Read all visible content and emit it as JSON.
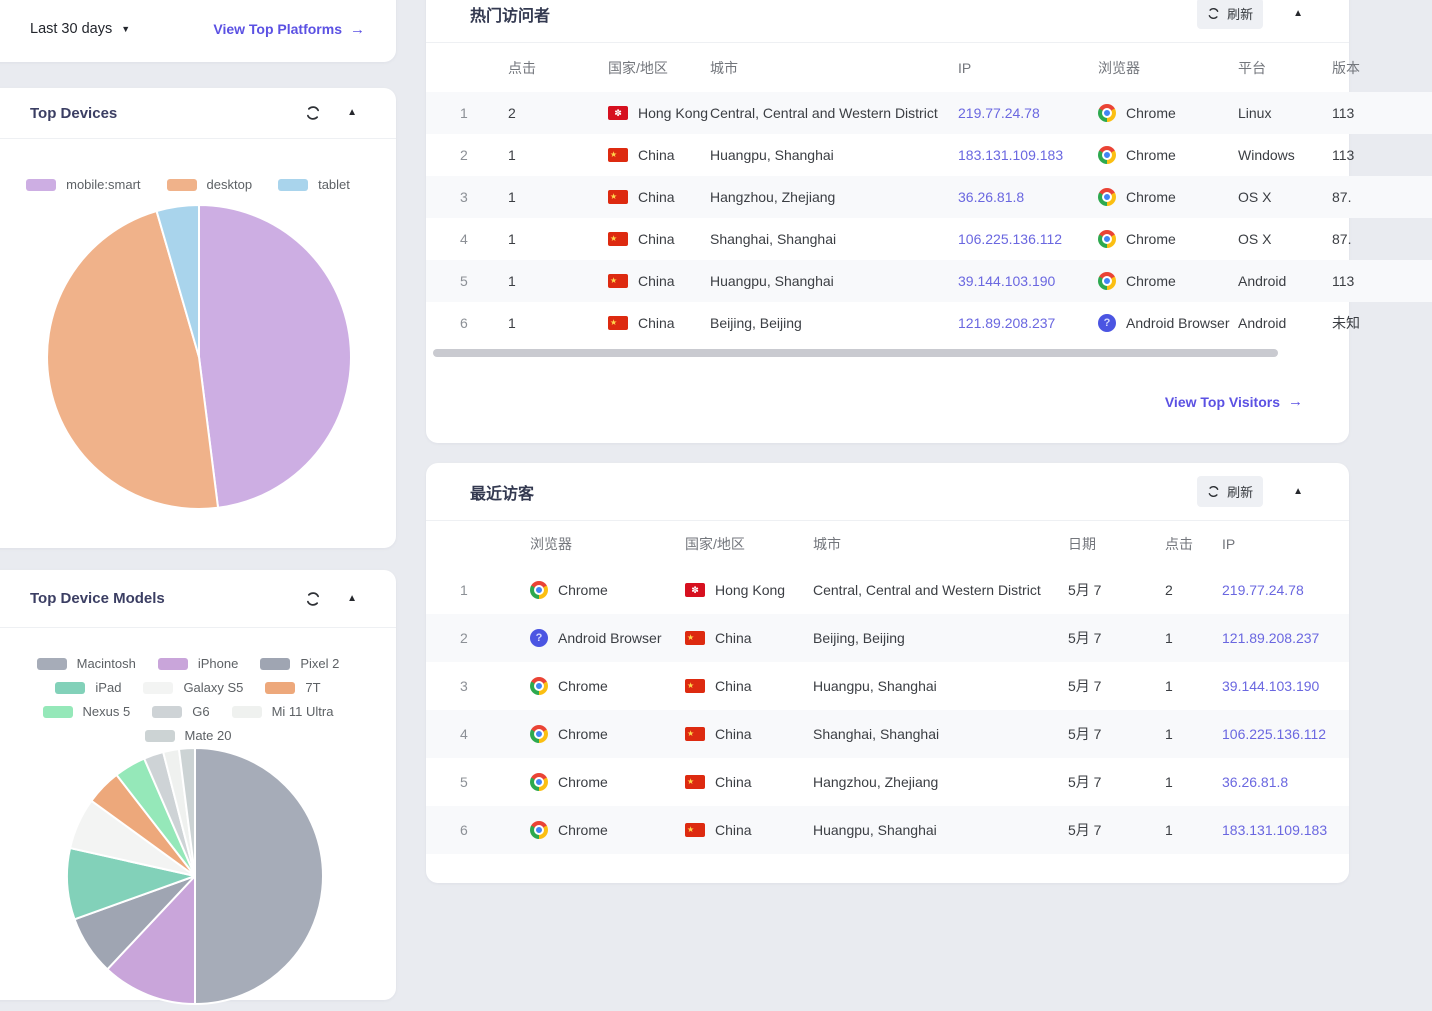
{
  "filter_bar": {
    "date_range": "Last 30 days",
    "platforms_link": "View Top Platforms",
    "arrow": "→"
  },
  "top_devices": {
    "title": "Top Devices"
  },
  "top_device_models": {
    "title": "Top Device Models"
  },
  "top_visitors": {
    "title": "热门访问者",
    "refresh": "刷新",
    "view_link": "View Top Visitors",
    "arrow": "→",
    "columns": {
      "clicks": "点击",
      "country": "国家/地区",
      "city": "城市",
      "ip": "IP",
      "browser": "浏览器",
      "platform": "平台",
      "version": "版本"
    },
    "rows": [
      {
        "rank": "1",
        "clicks": "2",
        "country": "Hong Kong",
        "flag": "hk",
        "city": "Central, Central and Western District",
        "ip": "219.77.24.78",
        "browser": "Chrome",
        "browser_icon": "chrome",
        "platform": "Linux",
        "version": "113"
      },
      {
        "rank": "2",
        "clicks": "1",
        "country": "China",
        "flag": "cn",
        "city": "Huangpu, Shanghai",
        "ip": "183.131.109.183",
        "browser": "Chrome",
        "browser_icon": "chrome",
        "platform": "Windows",
        "version": "113"
      },
      {
        "rank": "3",
        "clicks": "1",
        "country": "China",
        "flag": "cn",
        "city": "Hangzhou, Zhejiang",
        "ip": "36.26.81.8",
        "browser": "Chrome",
        "browser_icon": "chrome",
        "platform": "OS X",
        "version": "87."
      },
      {
        "rank": "4",
        "clicks": "1",
        "country": "China",
        "flag": "cn",
        "city": "Shanghai, Shanghai",
        "ip": "106.225.136.112",
        "browser": "Chrome",
        "browser_icon": "chrome",
        "platform": "OS X",
        "version": "87."
      },
      {
        "rank": "5",
        "clicks": "1",
        "country": "China",
        "flag": "cn",
        "city": "Huangpu, Shanghai",
        "ip": "39.144.103.190",
        "browser": "Chrome",
        "browser_icon": "chrome",
        "platform": "Android",
        "version": "113"
      },
      {
        "rank": "6",
        "clicks": "1",
        "country": "China",
        "flag": "cn",
        "city": "Beijing, Beijing",
        "ip": "121.89.208.237",
        "browser": "Android Browser",
        "browser_icon": "android-browser",
        "platform": "Android",
        "version": "未知"
      }
    ]
  },
  "recent_visitors": {
    "title": "最近访客",
    "refresh": "刷新",
    "columns": {
      "browser": "浏览器",
      "country": "国家/地区",
      "city": "城市",
      "date": "日期",
      "clicks": "点击",
      "ip": "IP"
    },
    "rows": [
      {
        "rank": "1",
        "browser": "Chrome",
        "browser_icon": "chrome",
        "country": "Hong Kong",
        "flag": "hk",
        "city": "Central, Central and Western District",
        "date": "5月 7",
        "clicks": "2",
        "ip": "219.77.24.78"
      },
      {
        "rank": "2",
        "browser": "Android Browser",
        "browser_icon": "android-browser",
        "country": "China",
        "flag": "cn",
        "city": "Beijing, Beijing",
        "date": "5月 7",
        "clicks": "1",
        "ip": "121.89.208.237"
      },
      {
        "rank": "3",
        "browser": "Chrome",
        "browser_icon": "chrome",
        "country": "China",
        "flag": "cn",
        "city": "Huangpu, Shanghai",
        "date": "5月 7",
        "clicks": "1",
        "ip": "39.144.103.190"
      },
      {
        "rank": "4",
        "browser": "Chrome",
        "browser_icon": "chrome",
        "country": "China",
        "flag": "cn",
        "city": "Shanghai, Shanghai",
        "date": "5月 7",
        "clicks": "1",
        "ip": "106.225.136.112"
      },
      {
        "rank": "5",
        "browser": "Chrome",
        "browser_icon": "chrome",
        "country": "China",
        "flag": "cn",
        "city": "Hangzhou, Zhejiang",
        "date": "5月 7",
        "clicks": "1",
        "ip": "36.26.81.8"
      },
      {
        "rank": "6",
        "browser": "Chrome",
        "browser_icon": "chrome",
        "country": "China",
        "flag": "cn",
        "city": "Huangpu, Shanghai",
        "date": "5月 7",
        "clicks": "1",
        "ip": "183.131.109.183"
      }
    ]
  },
  "chart_data": [
    {
      "type": "pie",
      "title": "Top Devices",
      "labels": [
        "mobile:smart",
        "desktop",
        "tablet"
      ],
      "values": [
        48,
        47.5,
        4.5
      ],
      "unit": "percent",
      "colors": [
        "#cdaee3",
        "#f0b28a",
        "#a9d4ec"
      ],
      "legend_position": "top"
    },
    {
      "type": "pie",
      "title": "Top Device Models",
      "labels": [
        "Macintosh",
        "iPhone",
        "Pixel 2",
        "iPad",
        "Galaxy S5",
        "7T",
        "Nexus 5",
        "G6",
        "Mi 11 Ultra",
        "Mate 20"
      ],
      "values": [
        50,
        12,
        7.5,
        9,
        6.5,
        4.5,
        4,
        2.5,
        2,
        2
      ],
      "unit": "percent",
      "colors": [
        "#a6acb8",
        "#c9a5da",
        "#9fa5b2",
        "#82d1b9",
        "#f3f4f3",
        "#eda87b",
        "#95e8b9",
        "#ced3d6",
        "#eff1ef",
        "#ccd3d4"
      ],
      "legend_position": "top"
    }
  ]
}
